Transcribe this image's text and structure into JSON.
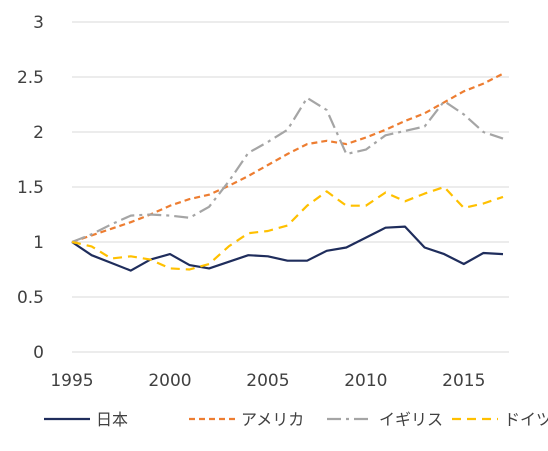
{
  "chart_data": {
    "type": "line",
    "x": [
      1995,
      1996,
      1997,
      1998,
      1999,
      2000,
      2001,
      2002,
      2003,
      2004,
      2005,
      2006,
      2007,
      2008,
      2009,
      2010,
      2011,
      2012,
      2013,
      2014,
      2015,
      2016,
      2017
    ],
    "series": [
      {
        "name": "日本",
        "color": "#1f2d5c",
        "dash": "solid",
        "values": [
          1.0,
          0.88,
          0.81,
          0.74,
          0.84,
          0.89,
          0.79,
          0.76,
          0.82,
          0.88,
          0.87,
          0.83,
          0.83,
          0.92,
          0.95,
          1.04,
          1.13,
          1.14,
          0.95,
          0.89,
          0.8,
          0.9,
          0.89
        ]
      },
      {
        "name": "アメリカ",
        "color": "#ed7d31",
        "dash": "short-dash",
        "values": [
          1.0,
          1.06,
          1.12,
          1.18,
          1.25,
          1.33,
          1.39,
          1.43,
          1.51,
          1.6,
          1.7,
          1.8,
          1.89,
          1.92,
          1.89,
          1.95,
          2.02,
          2.1,
          2.17,
          2.27,
          2.37,
          2.44,
          2.53
        ]
      },
      {
        "name": "イギリス",
        "color": "#a5a5a5",
        "dash": "dash-dot",
        "values": [
          1.0,
          1.07,
          1.16,
          1.24,
          1.25,
          1.24,
          1.22,
          1.32,
          1.55,
          1.81,
          1.91,
          2.02,
          2.31,
          2.2,
          1.8,
          1.84,
          1.97,
          2.01,
          2.05,
          2.28,
          2.16,
          2.0,
          1.94
        ]
      },
      {
        "name": "ドイツ",
        "color": "#ffc000",
        "dash": "long-dash",
        "values": [
          1.0,
          0.96,
          0.85,
          0.87,
          0.84,
          0.76,
          0.75,
          0.8,
          0.96,
          1.08,
          1.1,
          1.15,
          1.33,
          1.46,
          1.33,
          1.33,
          1.45,
          1.37,
          1.44,
          1.5,
          1.31,
          1.35,
          1.41
        ]
      }
    ],
    "ylim": [
      0,
      3
    ],
    "yticks": [
      "0",
      "0.5",
      "1",
      "1.5",
      "2",
      "2.5",
      "3"
    ],
    "xticks": [
      "1995",
      "2000",
      "2005",
      "2010",
      "2015"
    ],
    "grid": "horizontal",
    "legend": "bottom",
    "title": "",
    "xlabel": "",
    "ylabel": ""
  }
}
